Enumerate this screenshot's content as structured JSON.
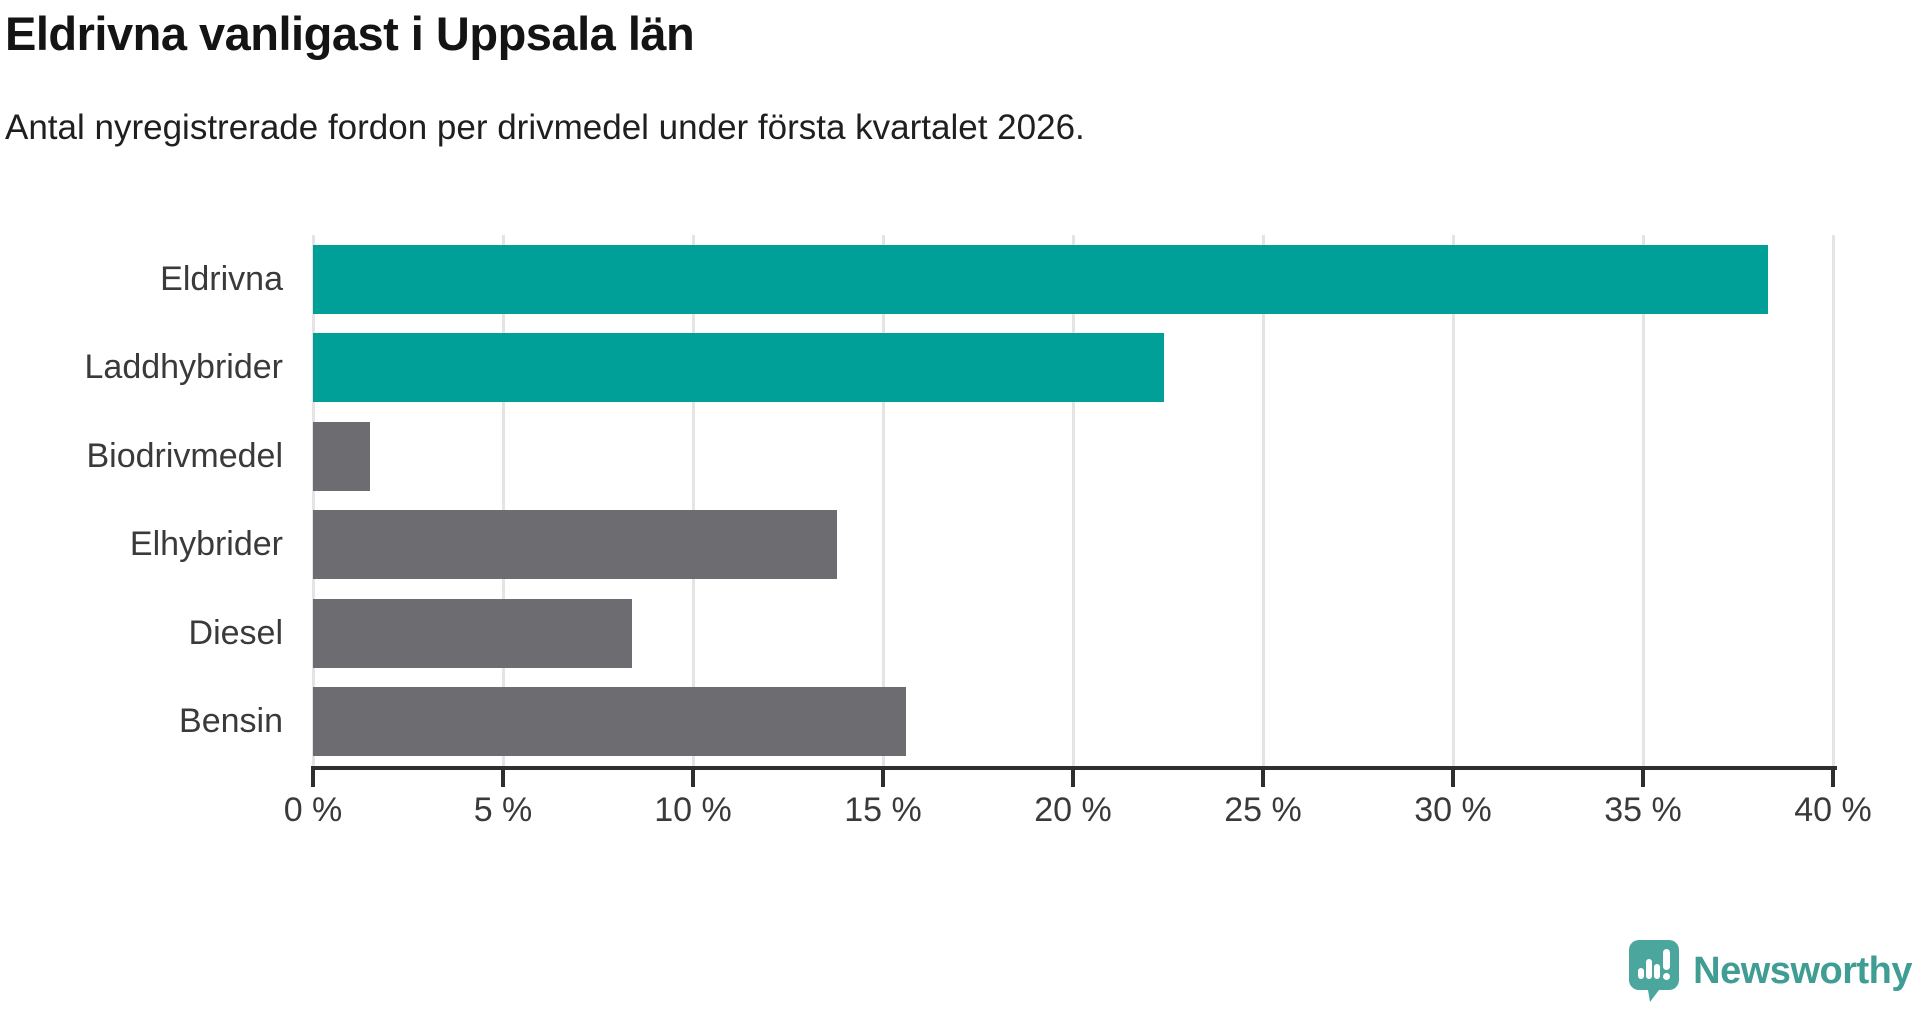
{
  "header": {
    "title": "Eldrivna vanligast i Uppsala län",
    "subtitle": "Antal nyregistrerade fordon per drivmedel under första kvartalet 2026."
  },
  "chart_data": {
    "type": "bar",
    "orientation": "horizontal",
    "title": "Eldrivna vanligast i Uppsala län",
    "categories": [
      "Eldrivna",
      "Laddhybrider",
      "Biodrivmedel",
      "Elhybrider",
      "Diesel",
      "Bensin"
    ],
    "values": [
      38.3,
      22.4,
      1.5,
      13.8,
      8.4,
      15.6
    ],
    "unit": "%",
    "bar_colors": [
      "#00A098",
      "#00A098",
      "#6D6D71",
      "#6D6D71",
      "#6D6D71",
      "#6D6D71"
    ],
    "highlight_color": "#00A098",
    "default_color": "#6D6D71",
    "xlim": [
      0,
      40
    ],
    "x_tick_step": 5,
    "x_tick_labels": [
      "0 %",
      "5 %",
      "10 %",
      "15 %",
      "20 %",
      "25 %",
      "30 %",
      "35 %",
      "40 %"
    ],
    "grid": "vertical-only",
    "legend": "none",
    "grid_color": "#E4E4E4",
    "axis_color": "#2E2E2E",
    "label_color": "#3A3A3A"
  },
  "footer": {
    "logo_text": "Newsworthy",
    "logo_icon": "newsworthy-bubble-barchart-icon",
    "logo_color": "#3F9D94"
  }
}
